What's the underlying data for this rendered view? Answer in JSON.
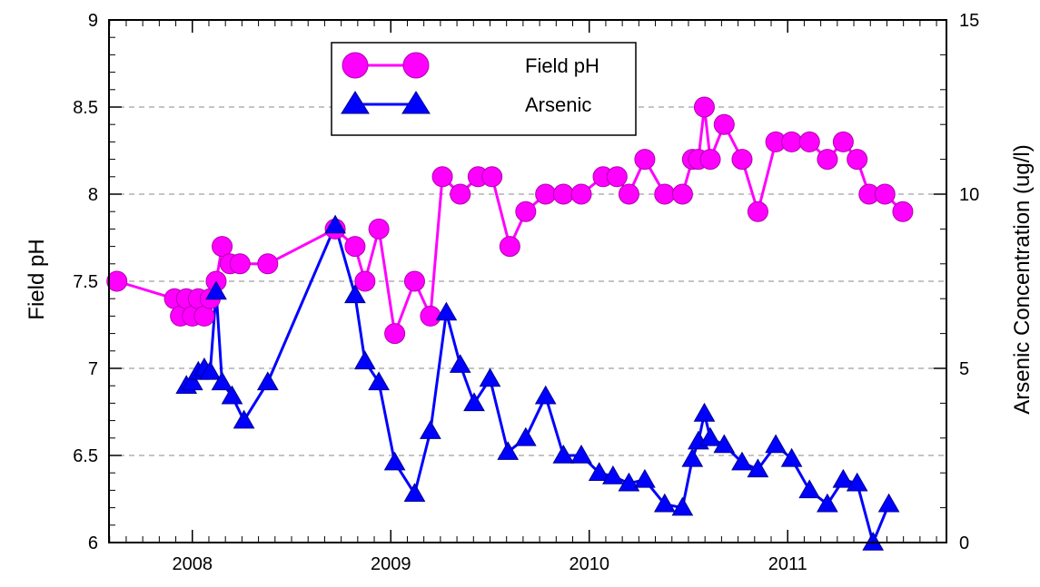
{
  "chart_data": {
    "type": "line",
    "xlabel": "",
    "ylabel": "Field pH",
    "y2label": "Arsenic Concentration (ug/l)",
    "xlim": [
      2007.58,
      2011.8
    ],
    "ylim": [
      6,
      9
    ],
    "y2lim": [
      0,
      15
    ],
    "x_ticks": [
      2008,
      2009,
      2010,
      2011
    ],
    "x_tick_labels": [
      "2008",
      "2009",
      "2010",
      "2011"
    ],
    "y_ticks": [
      6,
      6.5,
      7,
      7.5,
      8,
      8.5,
      9
    ],
    "y_tick_labels": [
      "6",
      "6.5",
      "7",
      "7.5",
      "8",
      "8.5",
      "9"
    ],
    "y2_ticks": [
      0,
      5,
      10,
      15
    ],
    "y2_tick_labels": [
      "0",
      "5",
      "10",
      "15"
    ],
    "grid": "horizontal dashed",
    "legend_position": "top-center",
    "series": [
      {
        "name": "Field pH",
        "axis": "left",
        "marker": "circle",
        "color": "#ff00ff",
        "x": [
          2007.62,
          2007.91,
          2007.94,
          2007.97,
          2008.0,
          2008.03,
          2008.06,
          2008.09,
          2008.12,
          2008.15,
          2008.19,
          2008.24,
          2008.38,
          2008.72,
          2008.82,
          2008.87,
          2008.94,
          2009.02,
          2009.12,
          2009.2,
          2009.26,
          2009.35,
          2009.44,
          2009.51,
          2009.6,
          2009.68,
          2009.78,
          2009.87,
          2009.96,
          2010.07,
          2010.14,
          2010.2,
          2010.28,
          2010.38,
          2010.47,
          2010.52,
          2010.55,
          2010.58,
          2010.61,
          2010.68,
          2010.77,
          2010.85,
          2010.94,
          2011.02,
          2011.11,
          2011.2,
          2011.28,
          2011.35,
          2011.41,
          2011.49,
          2011.58
        ],
        "y": [
          7.5,
          7.4,
          7.3,
          7.4,
          7.3,
          7.4,
          7.3,
          7.4,
          7.5,
          7.7,
          7.6,
          7.6,
          7.6,
          7.8,
          7.7,
          7.5,
          7.8,
          7.2,
          7.5,
          7.3,
          8.1,
          8.0,
          8.1,
          8.1,
          7.7,
          7.9,
          8.0,
          8.0,
          8.0,
          8.1,
          8.1,
          8.0,
          8.2,
          8.0,
          8.0,
          8.2,
          8.2,
          8.5,
          8.2,
          8.4,
          8.2,
          7.9,
          8.3,
          8.3,
          8.3,
          8.2,
          8.3,
          8.2,
          8.0,
          8.0,
          7.9
        ]
      },
      {
        "name": "Arsenic",
        "axis": "right",
        "marker": "triangle",
        "color": "#0000ff",
        "x": [
          2007.97,
          2008.0,
          2008.03,
          2008.06,
          2008.09,
          2008.12,
          2008.15,
          2008.2,
          2008.26,
          2008.38,
          2008.72,
          2008.82,
          2008.87,
          2008.94,
          2009.02,
          2009.12,
          2009.2,
          2009.28,
          2009.35,
          2009.42,
          2009.5,
          2009.59,
          2009.68,
          2009.78,
          2009.87,
          2009.96,
          2010.05,
          2010.12,
          2010.2,
          2010.28,
          2010.38,
          2010.47,
          2010.52,
          2010.55,
          2010.58,
          2010.61,
          2010.68,
          2010.77,
          2010.85,
          2010.94,
          2011.02,
          2011.11,
          2011.2,
          2011.28,
          2011.35,
          2011.43,
          2011.51
        ],
        "y": [
          4.5,
          4.6,
          4.9,
          5.0,
          4.9,
          7.2,
          4.6,
          4.2,
          3.5,
          4.6,
          9.1,
          7.1,
          5.2,
          4.6,
          2.3,
          1.4,
          3.2,
          6.6,
          5.1,
          4.0,
          4.7,
          2.6,
          3.0,
          4.2,
          2.5,
          2.5,
          2.0,
          1.9,
          1.7,
          1.8,
          1.1,
          1.0,
          2.4,
          2.9,
          3.7,
          3.0,
          2.8,
          2.3,
          2.1,
          2.8,
          2.4,
          1.5,
          1.1,
          1.8,
          1.7,
          0.0,
          1.1
        ]
      }
    ]
  }
}
